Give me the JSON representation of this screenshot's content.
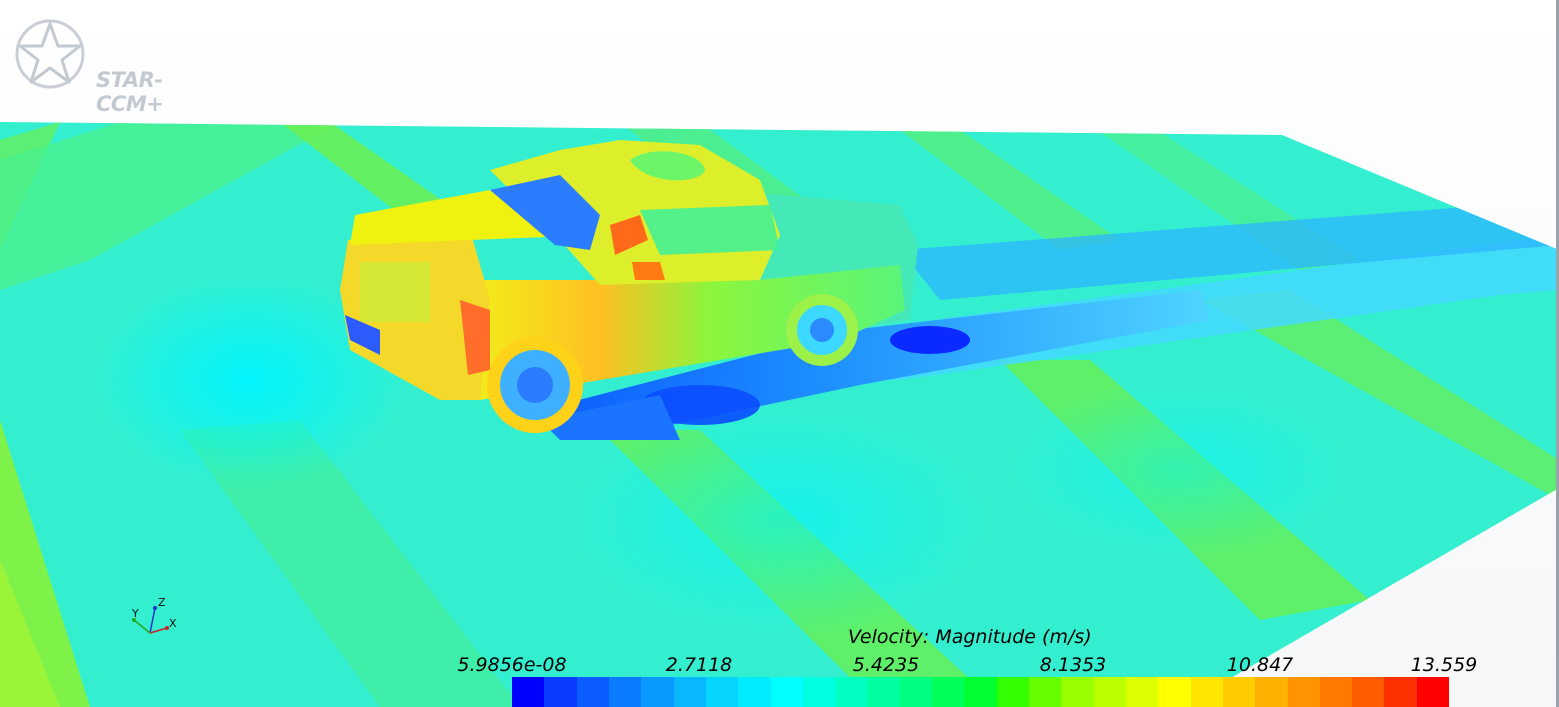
{
  "app": {
    "logo_text": "STAR-CCM+",
    "logo_icon": "star-ccm-logo-icon"
  },
  "triad": {
    "x_label": "X",
    "y_label": "Y",
    "z_label": "Z"
  },
  "legend": {
    "title": "Velocity: Magnitude (m/s)",
    "ticks": [
      "5.9856e-08",
      "2.7118",
      "5.4235",
      "8.1353",
      "10.847",
      "13.559"
    ],
    "min": 5.9856e-08,
    "max": 13.559,
    "colors": [
      "#0000ff",
      "#0a3cff",
      "#0b5cff",
      "#0b7bff",
      "#0a9aff",
      "#08b8ff",
      "#05d4ff",
      "#03ecff",
      "#00ffff",
      "#00ffe0",
      "#00ffc0",
      "#00ffa0",
      "#00ff80",
      "#00ff58",
      "#00ff30",
      "#33ff00",
      "#66ff00",
      "#99ff00",
      "#bbff00",
      "#ddff00",
      "#ffff00",
      "#ffe600",
      "#ffcc00",
      "#ffb000",
      "#ff9400",
      "#ff7800",
      "#ff5c00",
      "#ff3000",
      "#ff0000"
    ]
  },
  "scene": {
    "object": "pickup-truck",
    "background_top": "#ffffff",
    "background_bottom": "#f6f7f8",
    "ground_base_color": "#33f0d0",
    "wake_color": "#1ea0ff"
  }
}
